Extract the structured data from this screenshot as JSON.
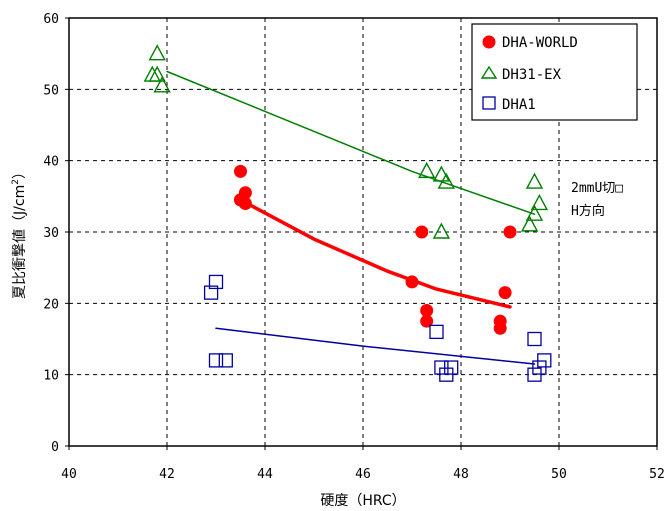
{
  "chart_data": {
    "type": "scatter",
    "title": "",
    "xlabel": "硬度（HRC）",
    "ylabel": "夏比衝撃値（J/cm²）",
    "ylabel_main": "夏比衝撃値（J/cm",
    "ylabel_sup": "2",
    "ylabel_end": "）",
    "xlim": [
      40,
      52
    ],
    "ylim": [
      0,
      60
    ],
    "x_ticks": [
      40,
      42,
      44,
      46,
      48,
      50,
      52
    ],
    "y_ticks": [
      0,
      10,
      20,
      30,
      40,
      50,
      60
    ],
    "grid": true,
    "legend_position": "top-right",
    "series": [
      {
        "name": "DHA-WORLD",
        "marker": "filled-circle",
        "color": "#ff0000",
        "points": [
          [
            43.5,
            38.5
          ],
          [
            43.6,
            35.5
          ],
          [
            43.5,
            34.5
          ],
          [
            43.6,
            34.0
          ],
          [
            43.5,
            34.5
          ],
          [
            47.2,
            30.0
          ],
          [
            47.0,
            23.0
          ],
          [
            47.3,
            19.0
          ],
          [
            47.3,
            17.5
          ],
          [
            48.8,
            17.5
          ],
          [
            48.8,
            16.5
          ],
          [
            49.0,
            30.0
          ],
          [
            48.9,
            21.5
          ]
        ],
        "trend": {
          "x": [
            43.5,
            45.0,
            46.5,
            47.5,
            49.0
          ],
          "y": [
            34.5,
            29.0,
            24.5,
            22.0,
            19.5
          ]
        }
      },
      {
        "name": "DH31-EX",
        "marker": "open-triangle",
        "color": "#008000",
        "points": [
          [
            41.8,
            55.0
          ],
          [
            41.8,
            52.0
          ],
          [
            41.9,
            50.5
          ],
          [
            41.7,
            52.0
          ],
          [
            47.3,
            38.5
          ],
          [
            47.6,
            38.0
          ],
          [
            47.7,
            37.0
          ],
          [
            47.6,
            30.0
          ],
          [
            49.5,
            37.0
          ],
          [
            49.6,
            34.0
          ],
          [
            49.5,
            32.5
          ],
          [
            49.4,
            31.0
          ]
        ],
        "trend": {
          "x": [
            42.0,
            44.5,
            47.0,
            49.5
          ],
          "y": [
            52.5,
            45.5,
            38.5,
            32.5
          ]
        }
      },
      {
        "name": "DHA1",
        "marker": "open-square",
        "color": "#0000a0",
        "points": [
          [
            42.9,
            21.5
          ],
          [
            43.0,
            23.0
          ],
          [
            43.0,
            12.0
          ],
          [
            43.2,
            12.0
          ],
          [
            47.5,
            16.0
          ],
          [
            47.6,
            11.0
          ],
          [
            47.7,
            10.0
          ],
          [
            47.8,
            11.0
          ],
          [
            49.5,
            15.0
          ],
          [
            49.5,
            10.0
          ],
          [
            49.7,
            12.0
          ],
          [
            49.6,
            11.0
          ]
        ],
        "trend": {
          "x": [
            43.0,
            46.0,
            49.5
          ],
          "y": [
            16.5,
            14.0,
            11.5
          ]
        }
      }
    ],
    "annotation_lines": [
      "2mmU切□",
      "H方向"
    ]
  },
  "colors": {
    "axis": "#000000",
    "grid": "#000000",
    "background": "#ffffff"
  }
}
